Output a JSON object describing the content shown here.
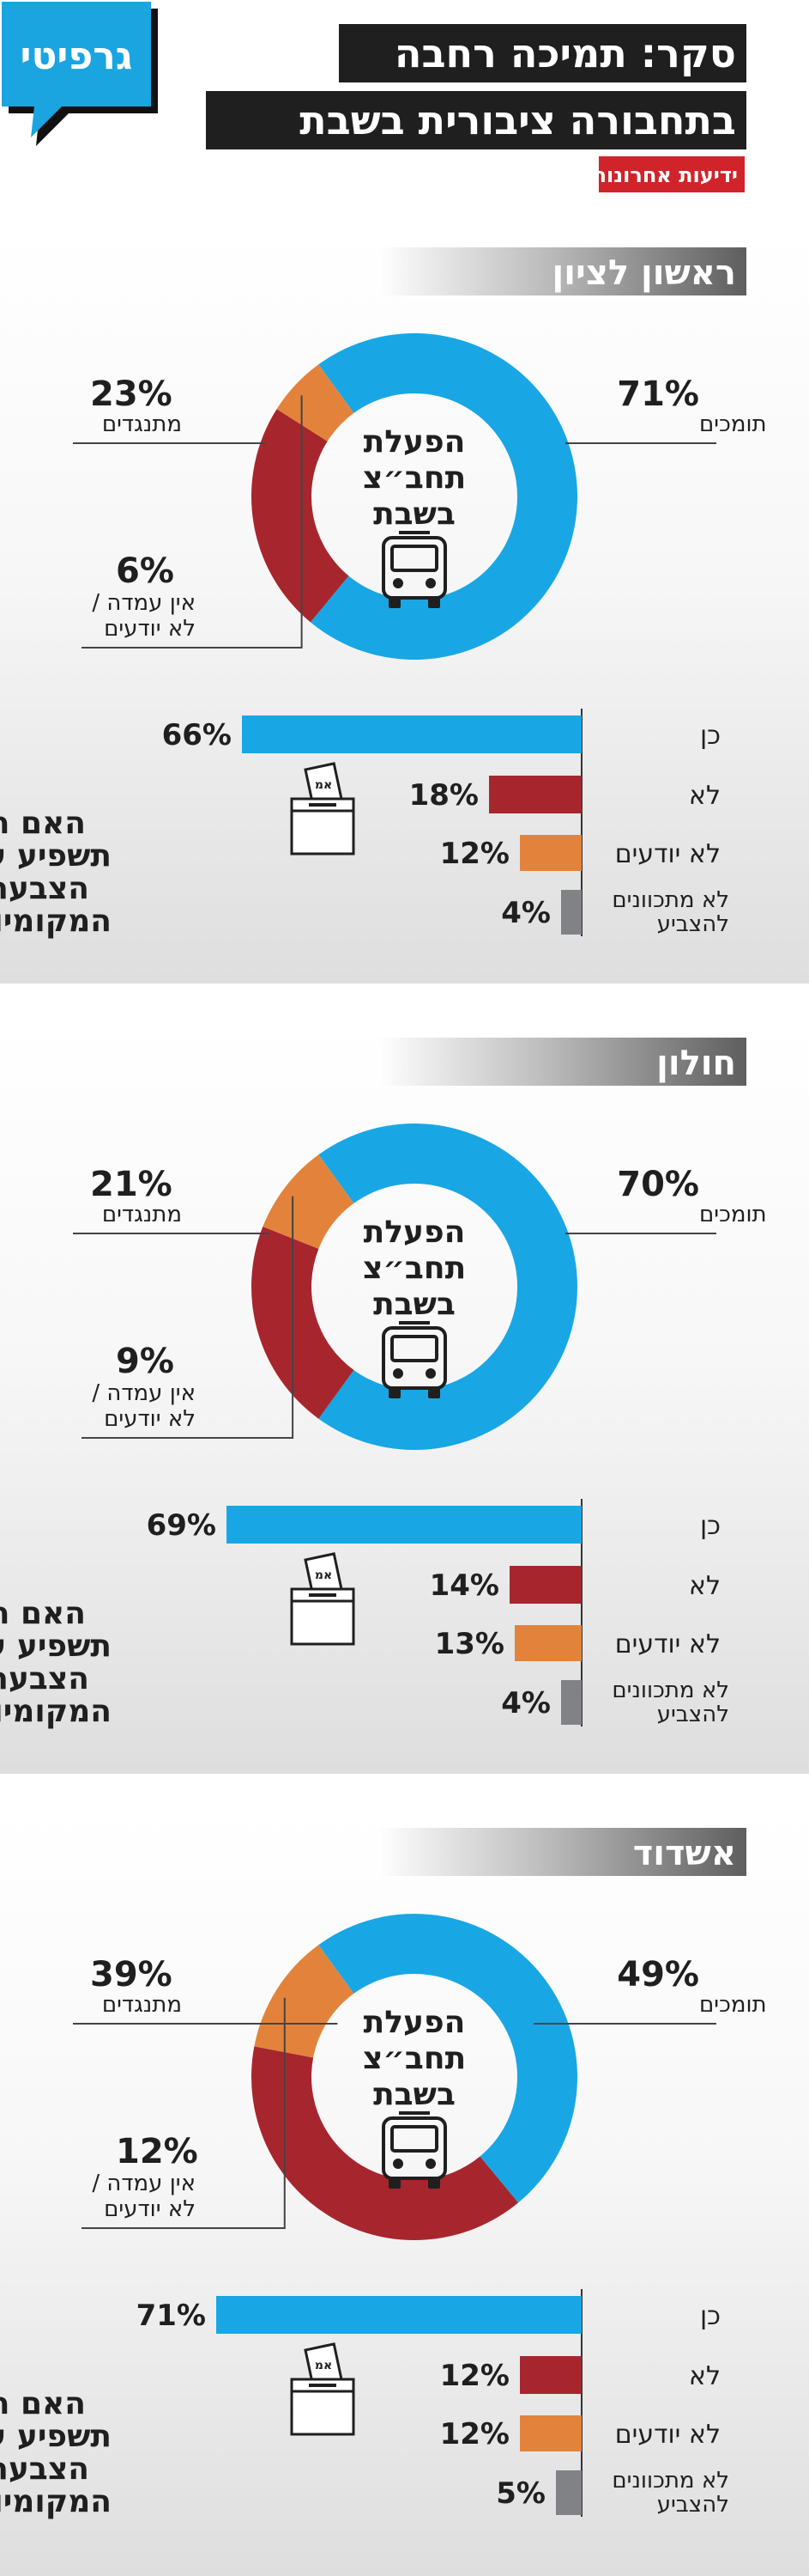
{
  "header": {
    "brand": "גרפיטי",
    "title_line1": "סקר: תמיכה רחבה",
    "title_line2": "בתחבורה ציבורית בשבת",
    "source": "ידיעות אחרונות"
  },
  "colors": {
    "blue": "#18a7e4",
    "red": "#a7262e",
    "orange": "#e3833b",
    "gray": "#818285",
    "dark": "#1f1f1f",
    "source_red": "#d1232a"
  },
  "donut_center": {
    "line1": "הפעלת",
    "line2": "תחב״צ",
    "line3": "בשבת",
    "icon": "bus-icon"
  },
  "question": {
    "line1": "האם הסוגיה",
    "line2": "תשפיע על",
    "line3": "הצבעתך בבחירות",
    "line4": "המקומיות",
    "icon": "ballot-box-icon",
    "ballot_label": "אמ"
  },
  "chart_data": [
    {
      "type": "pie",
      "title": "ראשון לציון",
      "donut": [
        {
          "label": "תומכים",
          "value": 71,
          "display": "71%"
        },
        {
          "label": "מתנגדים",
          "value": 23,
          "display": "23%"
        },
        {
          "label_line1": "אין עמדה /",
          "label_line2": "לא יודעים",
          "value": 6,
          "display": "6%"
        }
      ],
      "bars": [
        {
          "label": "כן",
          "value": 66,
          "display": "66%"
        },
        {
          "label": "לא",
          "value": 18,
          "display": "18%"
        },
        {
          "label": "לא יודעים",
          "value": 12,
          "display": "12%"
        },
        {
          "label_line1": "לא מתכוונים",
          "label_line2": "להצביע",
          "value": 4,
          "display": "4%"
        }
      ]
    },
    {
      "type": "pie",
      "title": "חולון",
      "donut": [
        {
          "label": "תומכים",
          "value": 70,
          "display": "70%"
        },
        {
          "label": "מתנגדים",
          "value": 21,
          "display": "21%"
        },
        {
          "label_line1": "אין עמדה /",
          "label_line2": "לא יודעים",
          "value": 9,
          "display": "9%"
        }
      ],
      "bars": [
        {
          "label": "כן",
          "value": 69,
          "display": "69%"
        },
        {
          "label": "לא",
          "value": 14,
          "display": "14%"
        },
        {
          "label": "לא יודעים",
          "value": 13,
          "display": "13%"
        },
        {
          "label_line1": "לא מתכוונים",
          "label_line2": "להצביע",
          "value": 4,
          "display": "4%"
        }
      ]
    },
    {
      "type": "pie",
      "title": "אשדוד",
      "donut": [
        {
          "label": "תומכים",
          "value": 49,
          "display": "49%"
        },
        {
          "label": "מתנגדים",
          "value": 39,
          "display": "39%"
        },
        {
          "label_line1": "אין עמדה /",
          "label_line2": "לא יודעים",
          "value": 12,
          "display": "12%"
        }
      ],
      "bars": [
        {
          "label": "כן",
          "value": 71,
          "display": "71%"
        },
        {
          "label": "לא",
          "value": 12,
          "display": "12%"
        },
        {
          "label": "לא יודעים",
          "value": 12,
          "display": "12%"
        },
        {
          "label_line1": "לא מתכוונים",
          "label_line2": "להצביע",
          "value": 5,
          "display": "5%"
        }
      ]
    }
  ]
}
